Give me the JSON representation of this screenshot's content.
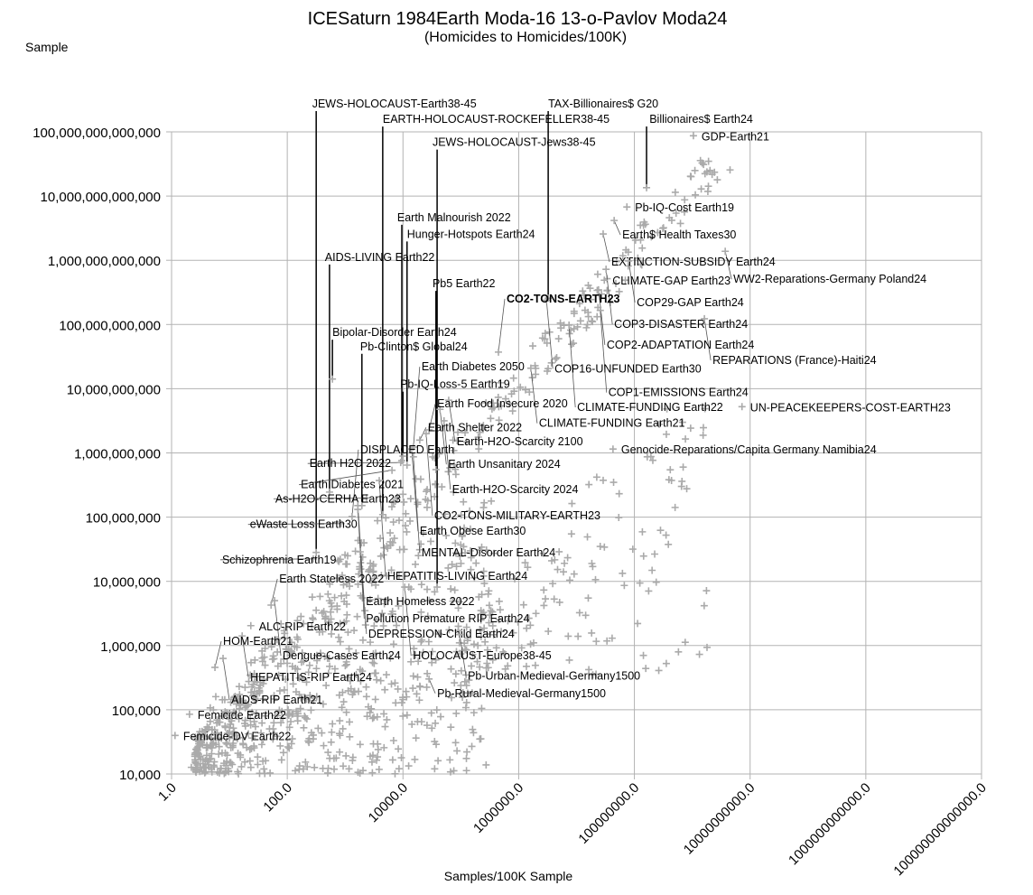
{
  "chart_data": {
    "type": "scatter",
    "title": "ICESaturn 1984Earth Moda-16 13-o-Pavlov Moda24",
    "subtitle": "(Homicides to Homicides/100K)",
    "ylabel": "Sample",
    "xlabel": "Samples/100K Sample",
    "x_scale": "log10",
    "y_scale": "log10",
    "xlim": [
      1,
      100000000000000
    ],
    "ylim": [
      10000,
      100000000000000
    ],
    "grid": true,
    "marker_color": "#aaaaaa",
    "x_ticks": [
      "1.0",
      "100.0",
      "10000.0",
      "1000000.0",
      "100000000.0",
      "10000000000.0",
      "1000000000000.0",
      "100000000000000.0"
    ],
    "y_ticks": [
      "10,000",
      "100,000",
      "1,000,000",
      "10,000,000",
      "100,000,000",
      "1,000,000,000",
      "10,000,000,000",
      "100,000,000,000",
      "1,000,000,000,000",
      "10,000,000,000,000",
      "100,000,000,000,000"
    ],
    "labeled_points": [
      {
        "label": "JEWS-HOLOCAUST-Earth38-45",
        "log_x": 2.5,
        "log_y": 7.45,
        "label_at": [
          2.43,
          14.45
        ]
      },
      {
        "label": "EARTH-HOLOCAUST-ROCKEFELLER38-45",
        "log_x": 3.65,
        "log_y": 8.04,
        "label_at": [
          3.65,
          14.21
        ]
      },
      {
        "label": "JEWS-HOLOCAUST-Jews38-45",
        "log_x": 4.59,
        "log_y": 6.91,
        "label_at": [
          4.51,
          13.85
        ]
      },
      {
        "label": "TAX-Billionaires$ G20",
        "log_x": 6.51,
        "log_y": 11.41,
        "label_at": [
          6.51,
          14.45
        ]
      },
      {
        "label": "Billionaires$ Earth24",
        "log_x": 8.21,
        "log_y": 13.13,
        "label_at": [
          8.26,
          14.21
        ]
      },
      {
        "label": "GDP-Earth21",
        "log_x": 9.02,
        "log_y": 13.94
      },
      {
        "label": "Pb-IQ-Cost Earth19",
        "log_x": 7.87,
        "log_y": 12.83
      },
      {
        "label": "Earth$ Health Taxes30",
        "log_x": 7.65,
        "log_y": 12.62
      },
      {
        "label": "EXTINCTION-SUBSIDY Earth24",
        "log_x": 7.46,
        "log_y": 12.41
      },
      {
        "label": "WW2-Reparations-Germany Poland24",
        "log_x": 9.57,
        "log_y": 12.14
      },
      {
        "label": "COP29-GAP Earth24",
        "log_x": 7.9,
        "log_y": 11.99
      },
      {
        "label": "COP3-DISASTER Earth24",
        "log_x": 7.51,
        "log_y": 11.86
      },
      {
        "label": "CLIMATE-GAP Earth23",
        "log_x": 7.48,
        "log_y": 11.69
      },
      {
        "label": "COP2-ADAPTATION Earth24",
        "log_x": 7.38,
        "log_y": 11.54
      },
      {
        "label": "COP16-UNFUNDED Earth30",
        "log_x": 6.48,
        "log_y": 11.38
      },
      {
        "label": "COP1-EMISSIONS Earth24",
        "log_x": 7.41,
        "log_y": 11.22
      },
      {
        "label": "REPARATIONS (France)-Haiti24",
        "log_x": 9.21,
        "log_y": 11.09
      },
      {
        "label": "CLIMATE-FUNDING Earth22",
        "log_x": 6.87,
        "log_y": 10.99
      },
      {
        "label": "CO2-TONS-EARTH23",
        "log_x": 5.65,
        "log_y": 10.57,
        "bold": true
      },
      {
        "label": "CLIMATE-FUNDING Earth21",
        "log_x": 6.21,
        "log_y": 10.32
      },
      {
        "label": "UN-PEACEKEEPERS-COST-EARTH23",
        "log_x": 9.86,
        "log_y": 9.72
      },
      {
        "label": "Genocide-Reparations/Capita Germany Namibia24",
        "log_x": 7.63,
        "log_y": 9.06
      },
      {
        "label": "Earth Malnourish 2022",
        "log_x": 3.98,
        "log_y": 8.88,
        "label_at": [
          3.9,
          12.68
        ]
      },
      {
        "label": "Hunger-Hotspots Earth24",
        "log_x": 4.07,
        "log_y": 8.81,
        "label_at": [
          4.07,
          12.42
        ]
      },
      {
        "label": "AIDS-LIVING Earth22",
        "log_x": 2.73,
        "log_y": 8.39,
        "label_at": [
          2.65,
          12.06
        ]
      },
      {
        "label": "Pb5 Earth22",
        "log_x": 4.57,
        "log_y": 8.74,
        "label_at": [
          4.51,
          11.65
        ]
      },
      {
        "label": "Bipolar-Disorder Earth24",
        "log_x": 2.78,
        "log_y": 10.15,
        "label_at": [
          2.78,
          10.89
        ]
      },
      {
        "label": "Pb-Clinton$ Global24",
        "log_x": 3.29,
        "log_y": 8.18,
        "label_at": [
          3.26,
          10.67
        ]
      },
      {
        "label": "Pb-IQ-Loss-5 Earth19",
        "log_x": 4.0,
        "log_y": 8.95,
        "label_at": [
          3.95,
          10.08
        ]
      },
      {
        "label": "Earth-H2O-Scarcity 2100",
        "log_x": 4.79,
        "log_y": 9.82
      },
      {
        "label": "Earth Unsanitary 2024",
        "log_x": 4.64,
        "log_y": 9.68
      },
      {
        "label": "Earth-H2O-Scarcity 2024",
        "log_x": 4.71,
        "log_y": 9.5
      },
      {
        "label": "Earth Food Insecure 2020",
        "log_x": 4.45,
        "log_y": 9.36
      },
      {
        "label": "CO2-TONS-MILITARY-EARTH23",
        "log_x": 4.4,
        "log_y": 9.3
      },
      {
        "label": "Earth Shelter 2022",
        "log_x": 4.29,
        "log_y": 9.2
      },
      {
        "label": "Earth Diabetes 2050",
        "log_x": 4.18,
        "log_y": 9.09
      },
      {
        "label": "Earth Obese Earth30",
        "log_x": 4.15,
        "log_y": 9.06
      },
      {
        "label": "MENTAL-Disorder Earth24",
        "log_x": 4.18,
        "log_y": 8.94
      },
      {
        "label": "Earth H2O 2022",
        "log_x": 3.96,
        "log_y": 8.85
      },
      {
        "label": "Earth Diabetes 2021",
        "log_x": 3.81,
        "log_y": 8.73
      },
      {
        "label": "HEPATITIS-LIVING Earth24",
        "log_x": 3.59,
        "log_y": 8.57
      },
      {
        "label": "As-H2O-CERHA Earth23",
        "log_x": 3.37,
        "log_y": 8.3
      },
      {
        "label": "Earth Homeless 2022",
        "log_x": 3.22,
        "log_y": 8.18
      },
      {
        "label": "Pollution Premature RIP Earth24",
        "log_x": 3.22,
        "log_y": 8.12
      },
      {
        "label": "DISPLACED Earth",
        "log_x": 3.12,
        "log_y": 8.01
      },
      {
        "label": "eWaste Loss Earth30",
        "log_x": 2.93,
        "log_y": 7.9
      },
      {
        "label": "DEPRESSION-Child Earth24",
        "log_x": 3.26,
        "log_y": 7.46
      },
      {
        "label": "Schizophrenia Earth19",
        "log_x": 2.45,
        "log_y": 7.35
      },
      {
        "label": "HOLOCAUST-Europe38-45",
        "log_x": 4.03,
        "log_y": 6.91
      },
      {
        "label": "Dengue-Cases Earth24",
        "log_x": 1.78,
        "log_y": 6.7
      },
      {
        "label": "Earth Stateless 2022",
        "log_x": 1.72,
        "log_y": 6.63
      },
      {
        "label": "ALC-RIP Earth22",
        "log_x": 1.37,
        "log_y": 6.31
      },
      {
        "label": "HEPATITIS-RIP Earth24",
        "log_x": 1.22,
        "log_y": 6.15
      },
      {
        "label": "AIDS-RIP Earth21",
        "log_x": 0.89,
        "log_y": 5.8
      },
      {
        "label": "HOM-Earth21",
        "log_x": 0.75,
        "log_y": 5.66
      },
      {
        "label": "Femicide Earth22",
        "log_x": 0.31,
        "log_y": 4.93
      },
      {
        "label": "Femicide-DV Earth22",
        "log_x": 0.06,
        "log_y": 4.6
      },
      {
        "label": "Pb-Urban-Medieval-Germany1500",
        "log_x": 4.98,
        "log_y": 6.17
      },
      {
        "label": "Pb-Rural-Medieval-Germany1500",
        "log_x": 4.45,
        "log_y": 5.48
      }
    ]
  }
}
